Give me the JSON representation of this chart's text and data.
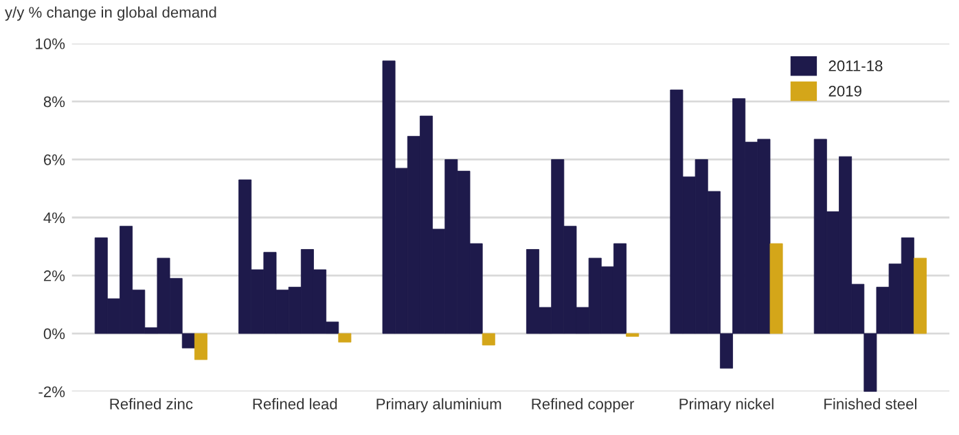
{
  "chart_data": {
    "type": "bar",
    "ylabel": "y/y % change in global demand",
    "categories": [
      "Refined zinc",
      "Refined lead",
      "Primary aluminium",
      "Refined copper",
      "Primary nickel",
      "Finished steel"
    ],
    "series": [
      {
        "name": "2011-18",
        "color": "#1e1a4b",
        "values": [
          3.3,
          5.3,
          9.4,
          2.9,
          8.4,
          6.7
        ]
      },
      {
        "color": "#1e1a4b",
        "values": [
          1.2,
          2.2,
          5.7,
          0.9,
          5.4,
          4.2
        ]
      },
      {
        "color": "#1e1a4b",
        "values": [
          3.7,
          2.8,
          6.8,
          6.0,
          6.0,
          6.1
        ]
      },
      {
        "color": "#1e1a4b",
        "values": [
          1.5,
          1.5,
          7.5,
          3.7,
          4.9,
          1.7
        ]
      },
      {
        "color": "#1e1a4b",
        "values": [
          0.2,
          1.6,
          3.6,
          0.9,
          -1.2,
          -2.0
        ]
      },
      {
        "color": "#1e1a4b",
        "values": [
          2.6,
          2.9,
          6.0,
          2.6,
          8.1,
          1.6
        ]
      },
      {
        "color": "#1e1a4b",
        "values": [
          1.9,
          2.2,
          5.6,
          2.3,
          6.6,
          2.4
        ]
      },
      {
        "color": "#1e1a4b",
        "values": [
          -0.5,
          0.4,
          3.1,
          3.1,
          6.7,
          3.3
        ]
      },
      {
        "name": "2019",
        "color": "#d4a619",
        "values": [
          -0.9,
          -0.3,
          -0.4,
          -0.1,
          3.1,
          2.6
        ]
      }
    ],
    "ylim": [
      -2,
      10
    ],
    "yticks": [
      {
        "value": -2,
        "label": "-2%"
      },
      {
        "value": 0,
        "label": "0%"
      },
      {
        "value": 2,
        "label": "2%"
      },
      {
        "value": 4,
        "label": "4%"
      },
      {
        "value": 6,
        "label": "6%"
      },
      {
        "value": 8,
        "label": "8%"
      },
      {
        "value": 10,
        "label": "10%"
      }
    ],
    "grid": "y",
    "legend": "top right"
  }
}
